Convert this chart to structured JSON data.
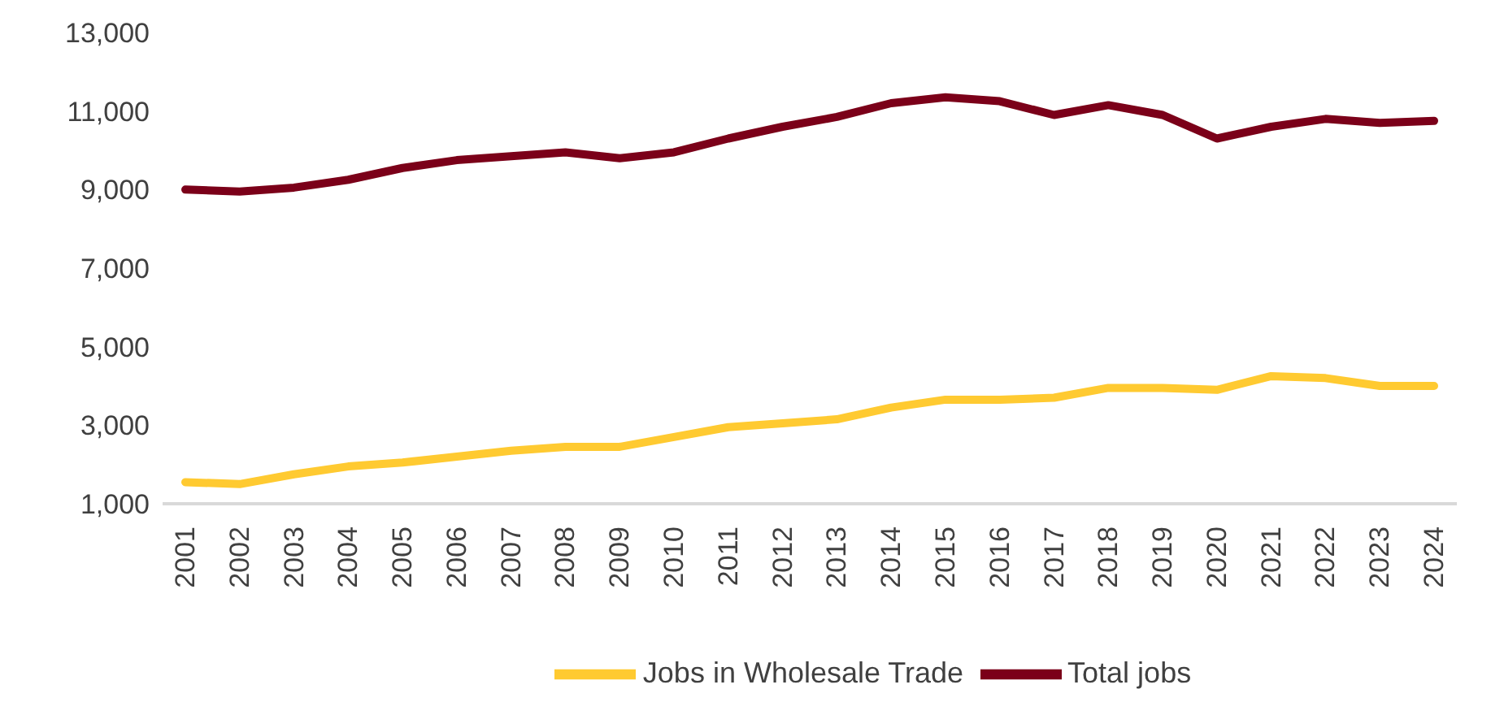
{
  "chart_data": {
    "type": "line",
    "categories": [
      "2001",
      "2002",
      "2003",
      "2004",
      "2005",
      "2006",
      "2007",
      "2008",
      "2009",
      "2010",
      "2011",
      "2012",
      "2013",
      "2014",
      "2015",
      "2016",
      "2017",
      "2018",
      "2019",
      "2020",
      "2021",
      "2022",
      "2023",
      "2024"
    ],
    "series": [
      {
        "name": "Total jobs",
        "color": "#7b0019",
        "values": [
          9000,
          8950,
          9050,
          9250,
          9550,
          9750,
          9850,
          9950,
          9800,
          9950,
          10300,
          10600,
          10850,
          11200,
          11350,
          11250,
          10900,
          11150,
          10900,
          10300,
          10600,
          10800,
          10700,
          10750
        ]
      },
      {
        "name": "Jobs in Wholesale Trade",
        "color": "#ffca31",
        "values": [
          1550,
          1500,
          1750,
          1950,
          2050,
          2200,
          2350,
          2450,
          2450,
          2700,
          2950,
          3050,
          3150,
          3450,
          3650,
          3650,
          3700,
          3950,
          3950,
          3900,
          4250,
          4200,
          4000,
          4000
        ]
      }
    ],
    "ylim": [
      1000,
      13000
    ],
    "yticks": [
      {
        "value": 1000,
        "label": "1,000"
      },
      {
        "value": 3000,
        "label": "3,000"
      },
      {
        "value": 5000,
        "label": "5,000"
      },
      {
        "value": 7000,
        "label": "7,000"
      },
      {
        "value": 9000,
        "label": "9,000"
      },
      {
        "value": 11000,
        "label": "11,000"
      },
      {
        "value": 13000,
        "label": "13,000"
      }
    ],
    "grid": false,
    "legend": "bottom",
    "marker": "none",
    "line_style": "solid"
  }
}
